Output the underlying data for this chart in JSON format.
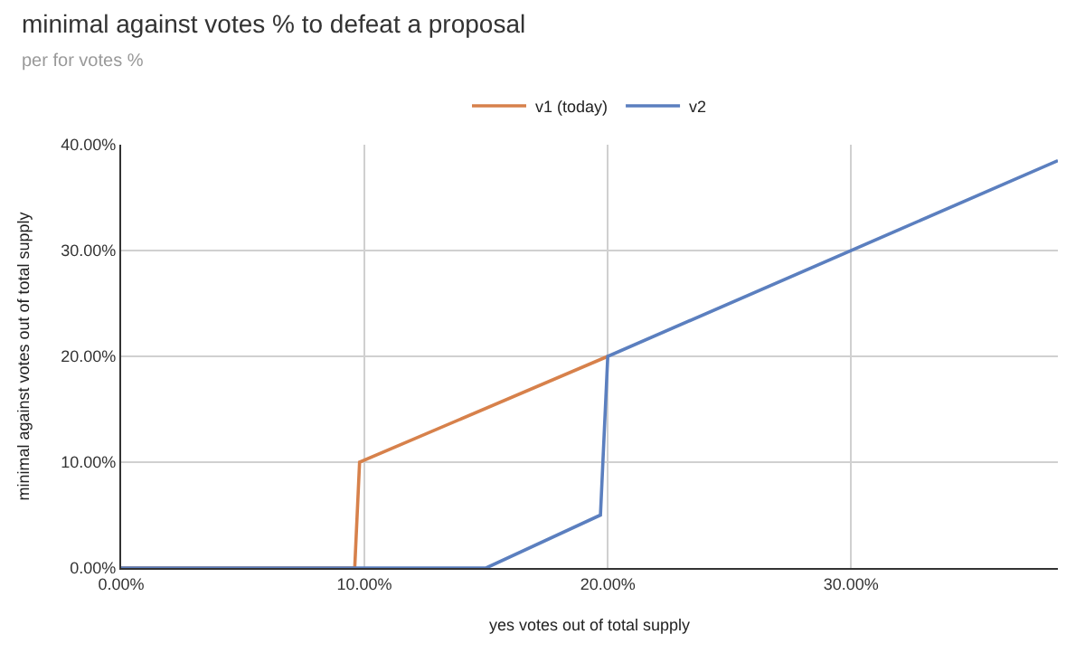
{
  "chart_data": {
    "type": "line",
    "title": "minimal against votes % to defeat a proposal",
    "subtitle": "per for votes %",
    "xlabel": "yes votes out of total supply",
    "ylabel": "minimal against votes out of total supply",
    "xlim": [
      0,
      38.5
    ],
    "ylim": [
      0,
      40
    ],
    "xticks": [
      {
        "value": 0,
        "label": "0.00%"
      },
      {
        "value": 10,
        "label": "10.00%"
      },
      {
        "value": 20,
        "label": "20.00%"
      },
      {
        "value": 30,
        "label": "30.00%"
      }
    ],
    "yticks": [
      {
        "value": 0,
        "label": "0.00%"
      },
      {
        "value": 10,
        "label": "10.00%"
      },
      {
        "value": 20,
        "label": "20.00%"
      },
      {
        "value": 30,
        "label": "30.00%"
      },
      {
        "value": 40,
        "label": "40.00%"
      }
    ],
    "grid": true,
    "legend": "top",
    "marker": "none",
    "line_style": "solid",
    "series": [
      {
        "name": "v1 (today)",
        "color": "#d7814b",
        "x": [
          0,
          9.6,
          9.8,
          20
        ],
        "values": [
          0,
          0,
          10,
          20
        ]
      },
      {
        "name": "v2",
        "color": "#5b7fbf",
        "x": [
          0,
          15,
          19.7,
          20,
          38.5
        ],
        "values": [
          0,
          0,
          5,
          20,
          38.5
        ]
      }
    ]
  }
}
